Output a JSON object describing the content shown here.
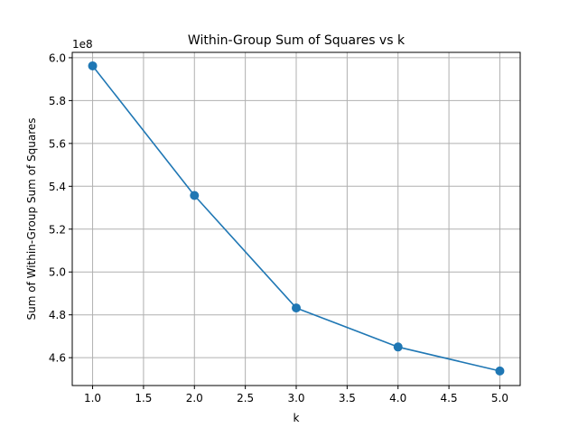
{
  "chart_data": {
    "type": "line",
    "title": "Within-Group Sum of Squares vs k",
    "xlabel": "k",
    "ylabel": "Sum of Within-Group Sum of Squares",
    "offset_label": "1e8",
    "xlim": [
      0.8,
      5.2
    ],
    "ylim": [
      4.47,
      6.025
    ],
    "xticks": [
      1.0,
      1.5,
      2.0,
      2.5,
      3.0,
      3.5,
      4.0,
      4.5,
      5.0
    ],
    "xtick_labels": [
      "1.0",
      "1.5",
      "2.0",
      "2.5",
      "3.0",
      "3.5",
      "4.0",
      "4.5",
      "5.0"
    ],
    "yticks": [
      4.6,
      4.8,
      5.0,
      5.2,
      5.4,
      5.6,
      5.8,
      6.0
    ],
    "ytick_labels": [
      "4.6",
      "4.8",
      "5.0",
      "5.2",
      "5.4",
      "5.6",
      "5.8",
      "6.0"
    ],
    "grid": true,
    "series": [
      {
        "x": [
          1,
          2,
          3,
          4,
          5
        ],
        "values": [
          5.962,
          5.357,
          4.832,
          4.65,
          4.538
        ],
        "color": "#1f77b4",
        "marker": "circle"
      }
    ]
  }
}
